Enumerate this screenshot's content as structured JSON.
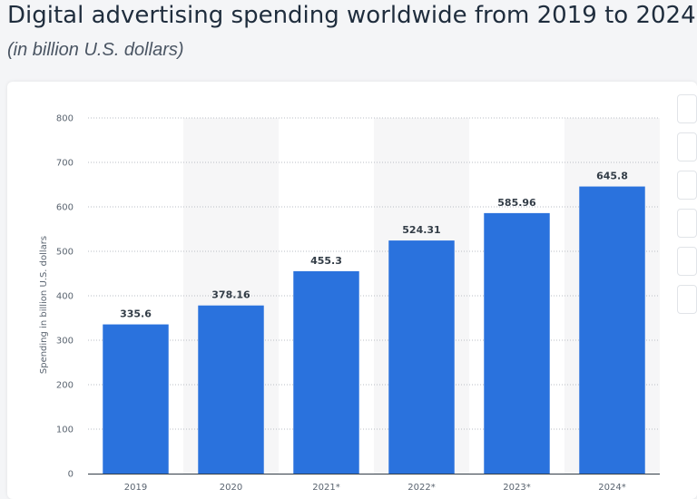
{
  "chart_data": {
    "type": "bar",
    "title": "Digital advertising spending worldwide from 2019 to 2024",
    "subtitle": "(in billion U.S. dollars)",
    "xlabel": "",
    "ylabel": "Spending in billion U.S. dollars",
    "categories": [
      "2019",
      "2020",
      "2021*",
      "2022*",
      "2023*",
      "2024*"
    ],
    "values": [
      335.6,
      378.16,
      455.3,
      524.31,
      585.96,
      645.8
    ],
    "value_labels": [
      "335.6",
      "378.16",
      "455.3",
      "524.31",
      "585.96",
      "645.8"
    ],
    "ylim": [
      0,
      800
    ],
    "yticks": [
      0,
      100,
      200,
      300,
      400,
      500,
      600,
      700,
      800
    ],
    "grid": true,
    "bar_color": "#2a72dd",
    "alt_band_color": "#f6f6f7"
  }
}
